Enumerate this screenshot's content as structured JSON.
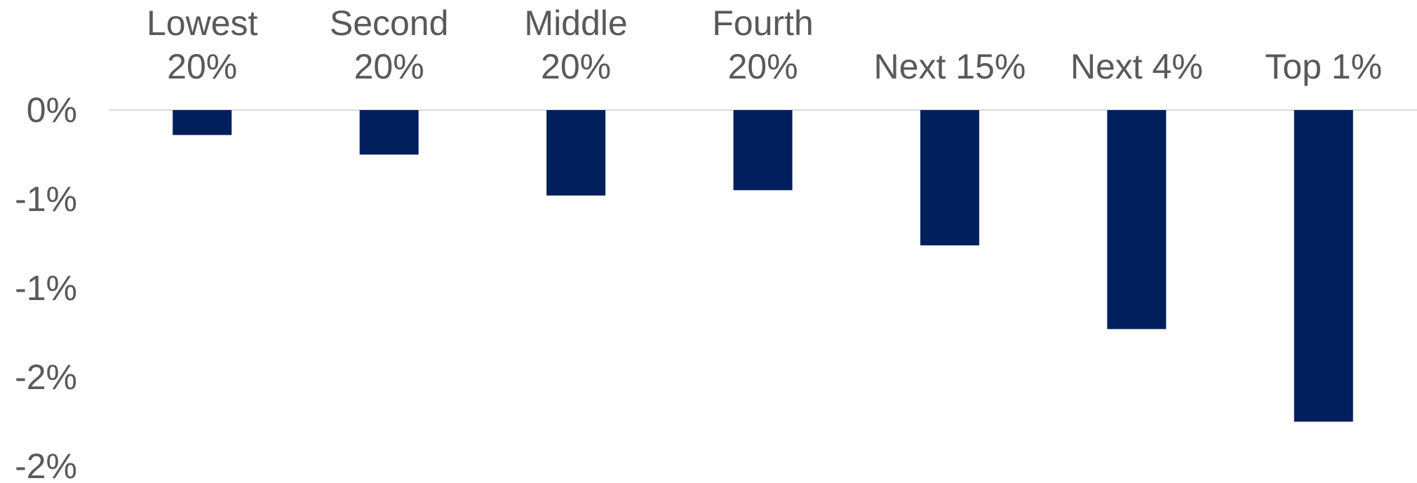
{
  "chart_data": {
    "type": "bar",
    "categories": [
      [
        "Lowest",
        "20%"
      ],
      [
        "Second",
        "20%"
      ],
      [
        "Middle",
        "20%"
      ],
      [
        "Fourth",
        "20%"
      ],
      [
        "Next 15%"
      ],
      [
        "Next 4%"
      ],
      [
        "Top 1%"
      ]
    ],
    "values": [
      -0.14,
      -0.25,
      -0.48,
      -0.45,
      -0.76,
      -1.23,
      -1.75
    ],
    "y_ticks": [
      0,
      -0.5,
      -1.0,
      -1.5,
      -2.0
    ],
    "y_tick_labels": [
      "0%",
      "-1%",
      "-1%",
      "-2%",
      "-2%"
    ],
    "ylim": [
      -2.0,
      0
    ],
    "bar_color": "#001f5c",
    "zero_line_color": "#d9d9d9",
    "grid": false,
    "legend": "none",
    "title": "",
    "xlabel": "",
    "ylabel": ""
  }
}
